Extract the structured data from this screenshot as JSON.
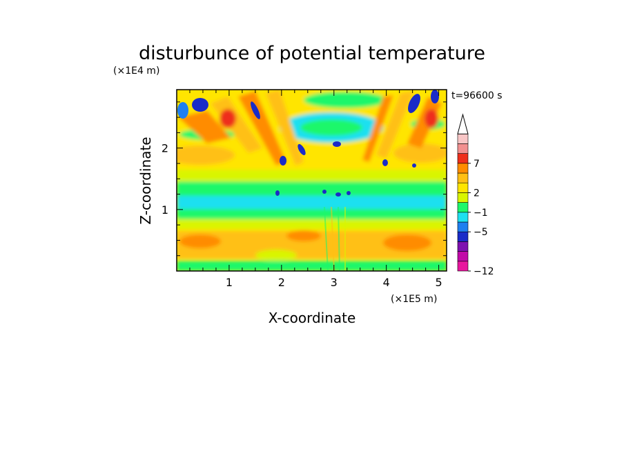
{
  "chart_data": {
    "type": "heatmap",
    "title": "disturbunce of potential temperature",
    "xlabel": "X-coordinate",
    "ylabel": "Z-coordinate",
    "x_scale_label": "(×1E5 m)",
    "y_scale_label": "(×1E4 m)",
    "time_label": "t=96600 s",
    "xlim": [
      0,
      5.15
    ],
    "ylim": [
      0,
      2.95
    ],
    "x_ticks": [
      "1",
      "2",
      "3",
      "4",
      "5"
    ],
    "y_ticks": [
      "1",
      "2"
    ],
    "colorbar": {
      "labels": [
        "-12",
        "-5",
        "-1",
        "2",
        "7"
      ],
      "colors": [
        "#e8169e",
        "#c20aa8",
        "#7e12b0",
        "#1a2bc8",
        "#1f7ff0",
        "#1fe0f0",
        "#1ef76b",
        "#d9f500",
        "#ffe500",
        "#ffc014",
        "#ff8c00",
        "#ee2f1c",
        "#f29090",
        "#f8c6c6"
      ],
      "extend": "max"
    }
  }
}
